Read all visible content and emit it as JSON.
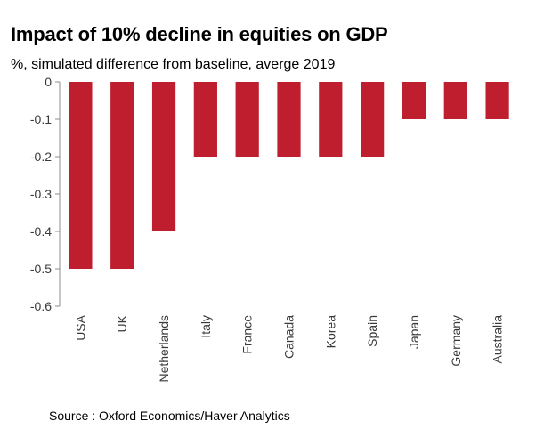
{
  "chart_data": {
    "type": "bar",
    "title": "Impact of 10% decline in equities on GDP",
    "subtitle": "%, simulated difference from baseline, averge 2019",
    "categories": [
      "USA",
      "UK",
      "Netherlands",
      "Italy",
      "France",
      "Canada",
      "Korea",
      "Spain",
      "Japan",
      "Germany",
      "Australia"
    ],
    "values": [
      -0.5,
      -0.5,
      -0.4,
      -0.2,
      -0.2,
      -0.2,
      -0.2,
      -0.2,
      -0.1,
      -0.1,
      -0.1
    ],
    "yticks": [
      0,
      -0.1,
      -0.2,
      -0.3,
      -0.4,
      -0.5,
      -0.6
    ],
    "ytick_labels": [
      "0",
      "-0.1",
      "-0.2",
      "-0.3",
      "-0.4",
      "-0.5",
      "-0.6"
    ],
    "ylim": [
      -0.6,
      0
    ],
    "xlabel": "",
    "ylabel": "",
    "bar_color": "#be1e2d",
    "grid": false,
    "legend": "none"
  },
  "source": "Source : Oxford Economics/Haver Analytics"
}
